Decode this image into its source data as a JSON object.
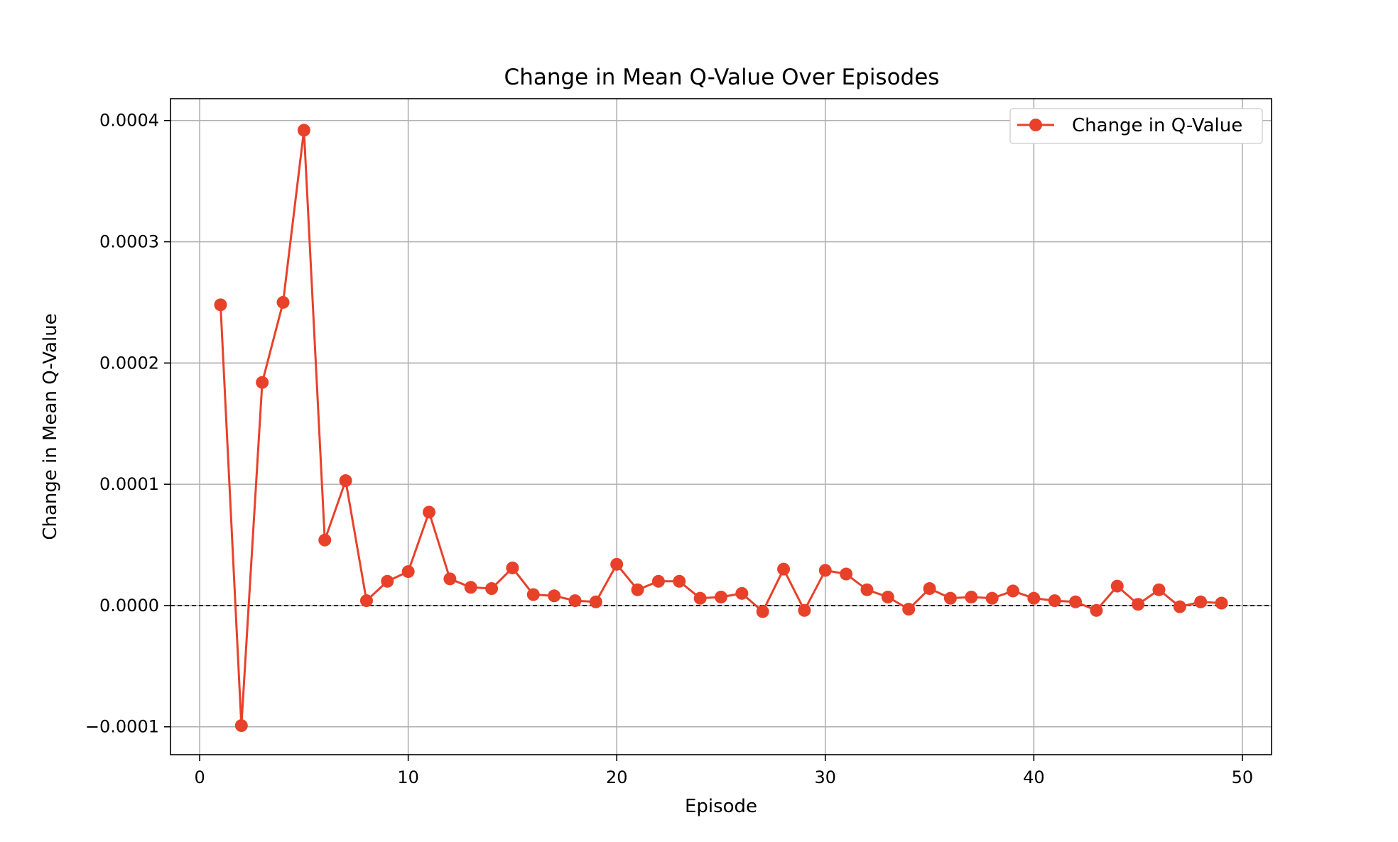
{
  "chart_data": {
    "type": "line",
    "title": "Change in Mean Q-Value Over Episodes",
    "xlabel": "Episode",
    "ylabel": "Change in Mean Q-Value",
    "xlim": [
      -1.4,
      51.4
    ],
    "ylim": [
      -0.000123,
      0.000418
    ],
    "xticks": [
      0,
      10,
      20,
      30,
      40,
      50
    ],
    "xtick_labels": [
      "0",
      "10",
      "20",
      "30",
      "40",
      "50"
    ],
    "yticks": [
      -0.0001,
      0.0,
      0.0001,
      0.0002,
      0.0003,
      0.0004
    ],
    "ytick_labels": [
      "−0.0001",
      "0.0000",
      "0.0001",
      "0.0002",
      "0.0003",
      "0.0004"
    ],
    "grid": true,
    "reference_line": {
      "y": 0,
      "style": "dashed",
      "color": "#000000"
    },
    "legend": {
      "position": "top-right"
    },
    "series": [
      {
        "name": "Change in Q-Value",
        "color": "#e8412a",
        "marker": "circle",
        "x": [
          1,
          2,
          3,
          4,
          5,
          6,
          7,
          8,
          9,
          10,
          11,
          12,
          13,
          14,
          15,
          16,
          17,
          18,
          19,
          20,
          21,
          22,
          23,
          24,
          25,
          26,
          27,
          28,
          29,
          30,
          31,
          32,
          33,
          34,
          35,
          36,
          37,
          38,
          39,
          40,
          41,
          42,
          43,
          44,
          45,
          46,
          47,
          48,
          49
        ],
        "values": [
          0.000248,
          -9.9e-05,
          0.000184,
          0.00025,
          0.000392,
          5.4e-05,
          0.000103,
          4e-06,
          2e-05,
          2.8e-05,
          7.7e-05,
          2.2e-05,
          1.5e-05,
          1.4e-05,
          3.1e-05,
          9e-06,
          8e-06,
          4e-06,
          3e-06,
          3.4e-05,
          1.3e-05,
          2e-05,
          2e-05,
          6e-06,
          7e-06,
          1e-05,
          -5e-06,
          3e-05,
          -4e-06,
          2.9e-05,
          2.6e-05,
          1.3e-05,
          7e-06,
          -3e-06,
          1.4e-05,
          6e-06,
          7e-06,
          6e-06,
          1.2e-05,
          6e-06,
          4e-06,
          3e-06,
          -4e-06,
          1.6e-05,
          1e-06,
          1.3e-05,
          -1e-06,
          3e-06,
          2e-06
        ]
      }
    ]
  }
}
